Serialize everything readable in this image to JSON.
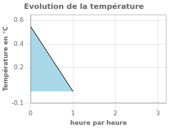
{
  "chart_data": {
    "type": "area",
    "title": "Evolution de la température",
    "xlabel": "heure par heure",
    "ylabel": "Température en °C",
    "xlim": [
      0,
      3.2
    ],
    "xticks": [
      0,
      1,
      2,
      3
    ],
    "ylim": [
      -0.1,
      0.65
    ],
    "yticks": [
      -0.1,
      0.2,
      0.4,
      0.6
    ],
    "grid": true,
    "series": [
      {
        "type": "area",
        "color": "#a8d8e8",
        "x": [
          0,
          0,
          1,
          1
        ],
        "values": [
          0,
          0.55,
          0,
          0
        ]
      },
      {
        "type": "line",
        "color": "#000000",
        "x": [
          0,
          1
        ],
        "values": [
          0.55,
          0
        ]
      }
    ]
  }
}
